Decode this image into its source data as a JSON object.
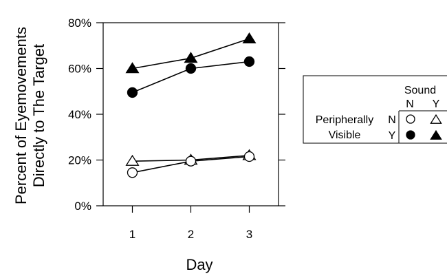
{
  "chart_data": {
    "type": "line",
    "title": "",
    "xlabel": "Day",
    "ylabel_lines": [
      "Percent of Eyemovements",
      "Directly to The Target"
    ],
    "x": [
      1,
      2,
      3
    ],
    "xticks": [
      "1",
      "2",
      "3"
    ],
    "xlim": [
      0.5,
      3.5
    ],
    "ylim": [
      0,
      80
    ],
    "yticks": [
      0,
      20,
      40,
      60,
      80
    ],
    "ytick_labels": [
      "0%",
      "20%",
      "40%",
      "60%",
      "80%"
    ],
    "grid": false,
    "legend_position": "right",
    "series": [
      {
        "key": "vis-y-sound-y",
        "marker": "filled-triangle",
        "values": [
          60,
          64.5,
          73
        ]
      },
      {
        "key": "vis-y-sound-n",
        "marker": "filled-circle",
        "values": [
          49.5,
          60,
          63
        ]
      },
      {
        "key": "vis-n-sound-y",
        "marker": "open-triangle",
        "values": [
          19.5,
          20,
          22
        ]
      },
      {
        "key": "vis-n-sound-n",
        "marker": "open-circle",
        "values": [
          14.5,
          19.5,
          21.5
        ]
      }
    ],
    "legend": {
      "column_header": "Sound",
      "column_labels": [
        "N",
        "Y"
      ],
      "row_header_lines": [
        "Peripherally",
        "Visible"
      ],
      "row_labels": [
        "N",
        "Y"
      ]
    }
  }
}
